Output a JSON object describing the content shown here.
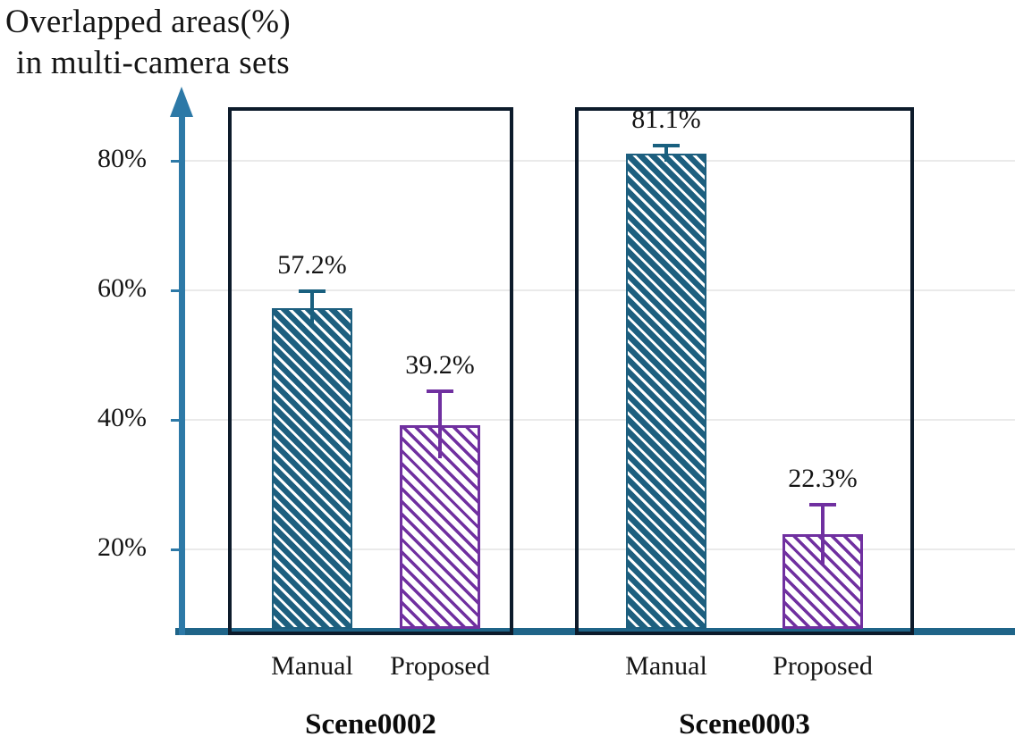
{
  "title": {
    "line1": "Overlapped areas(%)",
    "line2": "in multi-camera sets"
  },
  "chart_data": {
    "type": "bar",
    "title": "Overlapped areas(%) in multi-camera sets",
    "xlabel": "",
    "ylabel": "Overlapped areas (%)",
    "ylim": [
      7.3,
      88.3
    ],
    "grid": true,
    "legend_position": "none",
    "y_ticks": [
      {
        "value": 80,
        "label": "80%"
      },
      {
        "value": 60,
        "label": "60%"
      },
      {
        "value": 40,
        "label": "40%"
      },
      {
        "value": 20,
        "label": "20%"
      }
    ],
    "series_names": [
      "Manual",
      "Proposed"
    ],
    "groups": [
      {
        "name": "Scene0002",
        "bars": [
          {
            "series": "Manual",
            "value": 57.2,
            "label": "57.2%",
            "error": 2.6
          },
          {
            "series": "Proposed",
            "value": 39.2,
            "label": "39.2%",
            "error": 5.2
          }
        ]
      },
      {
        "name": "Scene0003",
        "bars": [
          {
            "series": "Manual",
            "value": 81.1,
            "label": "81.1%",
            "error": 1.3
          },
          {
            "series": "Proposed",
            "value": 22.3,
            "label": "22.3%",
            "error": 4.6
          }
        ]
      }
    ],
    "colors": {
      "manual_fill": "#1d5f7f",
      "manual_hatch": "#ffffff",
      "manual_error": "#19607f",
      "proposed_fill": "#ffffff",
      "proposed_hatch": "#7030a0",
      "proposed_error": "#7030a0",
      "axis": "#2d79a7",
      "baseline": "#1f6488",
      "group_box_border": "#0d1b2b",
      "gridline": "#eaeaea",
      "text": "#141414"
    }
  }
}
